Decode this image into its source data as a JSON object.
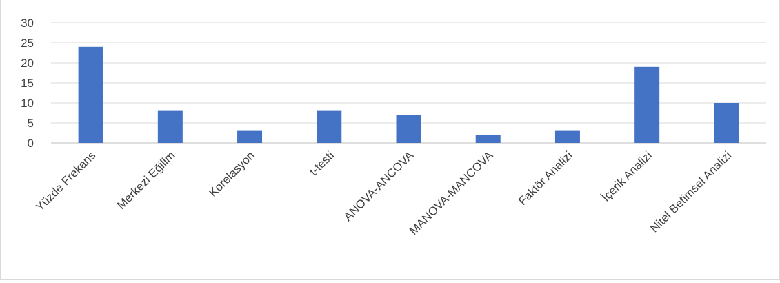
{
  "chart_data": {
    "type": "bar",
    "title": "",
    "xlabel": "",
    "ylabel": "",
    "categories": [
      "Yüzde Frekans",
      "Merkezi Eğilim",
      "Korelasyon",
      "t-testi",
      "ANOVA-ANCOVA",
      "MANOVA-MANCOVA",
      "Faktör Analizi",
      "İçerik Analizi",
      "Nitel Betimsel Analizi"
    ],
    "values": [
      24,
      8,
      3,
      8,
      7,
      2,
      3,
      19,
      10
    ],
    "ylim": [
      0,
      30
    ],
    "yticks": [
      "0",
      "5",
      "10",
      "15",
      "20",
      "25",
      "30"
    ],
    "grid": true,
    "legend": "none",
    "colors": {
      "bar": "#4472C4",
      "grid": "#d9d9d9",
      "axis": "#bfbfbf",
      "text": "#404040"
    }
  }
}
